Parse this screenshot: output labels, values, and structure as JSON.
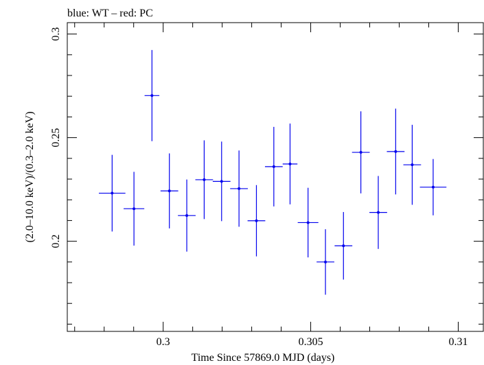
{
  "chart_data": {
    "type": "scatter",
    "title": "blue: WT – red: PC",
    "xlabel": "Time Since 57869.0 MJD (days)",
    "ylabel": "(2.0–10.0 keV)/(0.3–2.0 keV)",
    "xlim": [
      0.29675,
      0.31085
    ],
    "ylim": [
      0.1565,
      0.3055
    ],
    "x_ticks": [
      "0.3",
      "0.305",
      "0.31"
    ],
    "y_ticks": [
      "0.2",
      "0.25",
      "0.3"
    ],
    "grid": false,
    "series": [
      {
        "color": "#0000ee",
        "points": [
          {
            "x": 0.29827,
            "xerr": 0.00045,
            "y": 0.2232,
            "yerr": 0.0185
          },
          {
            "x": 0.29901,
            "xerr": 0.00035,
            "y": 0.2157,
            "yerr": 0.0178
          },
          {
            "x": 0.29962,
            "xerr": 0.00025,
            "y": 0.2703,
            "yerr": 0.022
          },
          {
            "x": 0.30021,
            "xerr": 0.0003,
            "y": 0.2243,
            "yerr": 0.0181
          },
          {
            "x": 0.3008,
            "xerr": 0.0003,
            "y": 0.2124,
            "yerr": 0.0174
          },
          {
            "x": 0.30139,
            "xerr": 0.0003,
            "y": 0.2297,
            "yerr": 0.019
          },
          {
            "x": 0.30198,
            "xerr": 0.0003,
            "y": 0.2289,
            "yerr": 0.0192
          },
          {
            "x": 0.30257,
            "xerr": 0.0003,
            "y": 0.2254,
            "yerr": 0.0184
          },
          {
            "x": 0.30316,
            "xerr": 0.0003,
            "y": 0.2099,
            "yerr": 0.0172
          },
          {
            "x": 0.30375,
            "xerr": 0.0003,
            "y": 0.236,
            "yerr": 0.0192
          },
          {
            "x": 0.3043,
            "xerr": 0.00025,
            "y": 0.2373,
            "yerr": 0.0195
          },
          {
            "x": 0.30491,
            "xerr": 0.00035,
            "y": 0.209,
            "yerr": 0.0168
          },
          {
            "x": 0.3055,
            "xerr": 0.0003,
            "y": 0.19,
            "yerr": 0.0158
          },
          {
            "x": 0.30611,
            "xerr": 0.0003,
            "y": 0.1978,
            "yerr": 0.0163
          },
          {
            "x": 0.3067,
            "xerr": 0.0003,
            "y": 0.2429,
            "yerr": 0.0198
          },
          {
            "x": 0.30729,
            "xerr": 0.0003,
            "y": 0.2139,
            "yerr": 0.0176
          },
          {
            "x": 0.30788,
            "xerr": 0.0003,
            "y": 0.2433,
            "yerr": 0.0207
          },
          {
            "x": 0.30844,
            "xerr": 0.0003,
            "y": 0.2369,
            "yerr": 0.0193
          },
          {
            "x": 0.30915,
            "xerr": 0.00045,
            "y": 0.2261,
            "yerr": 0.0136
          }
        ]
      }
    ]
  }
}
